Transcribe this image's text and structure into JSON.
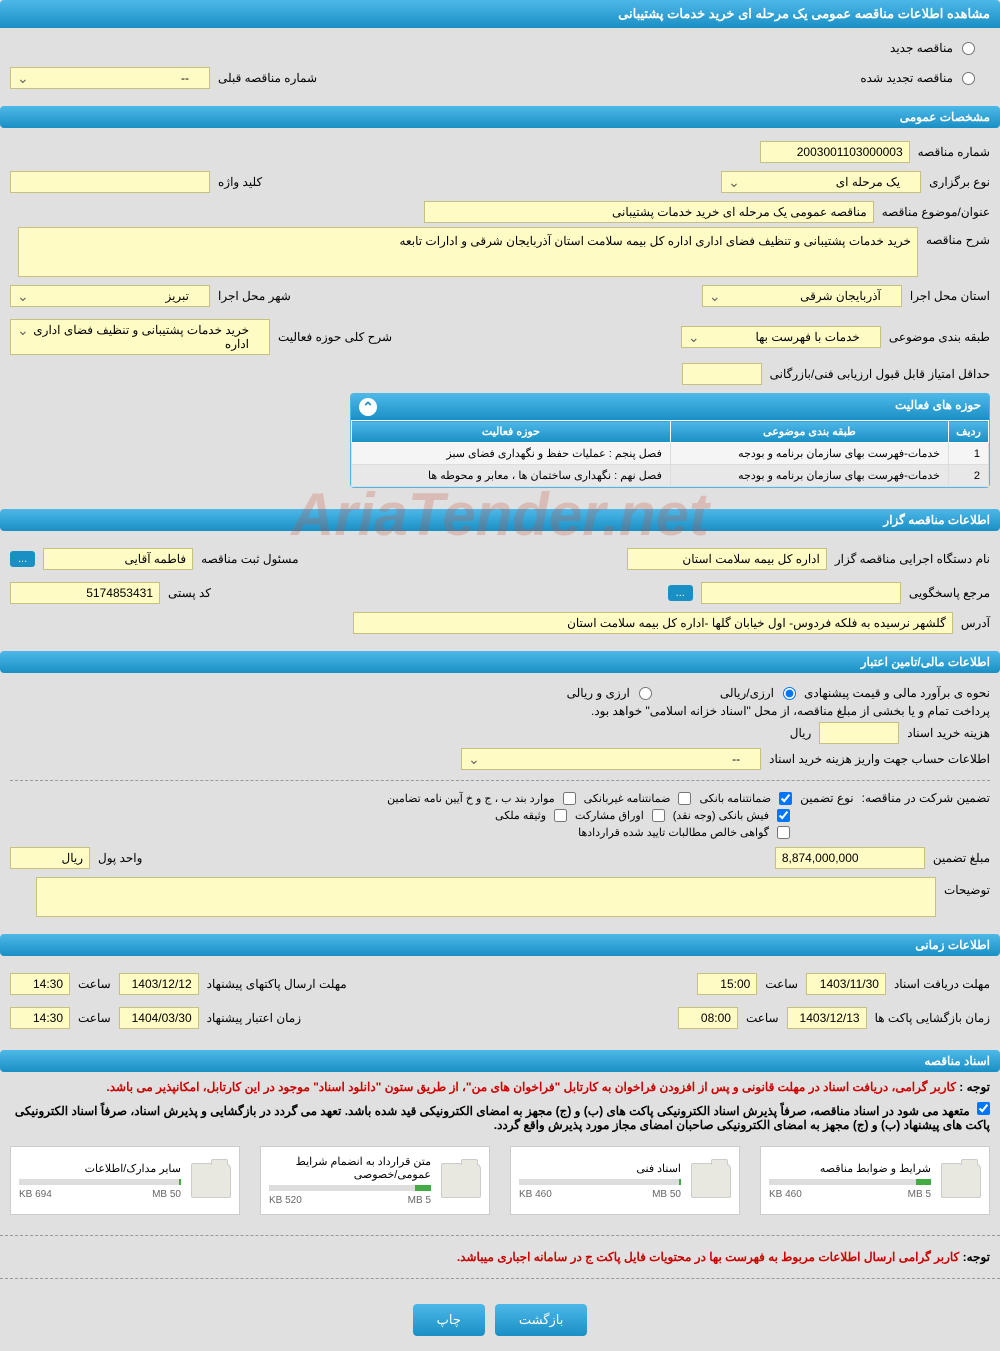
{
  "page_title": "مشاهده اطلاعات مناقصه عمومی یک مرحله ای خرید خدمات پشتیبانی",
  "tender_type": {
    "new_label": "مناقصه جدید",
    "renewed_label": "مناقصه تجدید شده",
    "prev_number_label": "شماره مناقصه قبلی",
    "prev_number_value": "--"
  },
  "sections": {
    "general": "مشخصات عمومی",
    "organizer": "اطلاعات مناقصه گزار",
    "financial": "اطلاعات مالی/تامین اعتبار",
    "timing": "اطلاعات زمانی",
    "documents": "اسناد مناقصه"
  },
  "general": {
    "tender_no_label": "شماره مناقصه",
    "tender_no": "2003001103000003",
    "type_label": "نوع برگزاری",
    "type_value": "یک مرحله ای",
    "keyword_label": "کلید واژه",
    "keyword_value": "",
    "title_label": "عنوان/موضوع مناقصه",
    "title_value": "مناقصه عمومی یک مرحله ای خرید خدمات پشتیبانی",
    "desc_label": "شرح مناقصه",
    "desc_value": "خرید خدمات پشتیبانی و تنظیف فضای اداری اداره کل بیمه سلامت استان آذربایجان شرقی و ادارات تابعه",
    "province_label": "استان محل اجرا",
    "province_value": "آذربایجان شرقی",
    "city_label": "شهر محل اجرا",
    "city_value": "تبریز",
    "subject_class_label": "طبقه بندی موضوعی",
    "subject_class_value": "خدمات با فهرست بها",
    "activity_desc_label": "شرح کلی حوزه فعالیت",
    "activity_desc_value": "خرید خدمات پشتیبانی و تنظیف فضای اداری اداره",
    "min_score_label": "حداقل امتیاز قابل قبول ارزیابی فنی/بازرگانی",
    "min_score_value": ""
  },
  "activity_panel": {
    "title": "حوزه های فعالیت",
    "col_row": "ردیف",
    "col_class": "طبقه بندی موضوعی",
    "col_field": "حوزه فعالیت",
    "rows": [
      {
        "n": "1",
        "class": "خدمات-فهرست بهای سازمان برنامه و بودجه",
        "field": "فصل پنجم : عملیات حفظ و نگهداری فضای سبز"
      },
      {
        "n": "2",
        "class": "خدمات-فهرست بهای سازمان برنامه و بودجه",
        "field": "فصل نهم : نگهداری ساختمان ها ، معابر و محوطه ها"
      }
    ]
  },
  "organizer": {
    "org_label": "نام دستگاه اجرایی مناقصه گزار",
    "org_value": "اداره کل بیمه سلامت استان",
    "reg_label": "مسئول ثبت مناقصه",
    "reg_value": "فاطمه آقایی",
    "more_btn": "...",
    "contact_label": "مرجع پاسخگویی",
    "contact_value": "",
    "contact_btn": "...",
    "postal_label": "کد پستی",
    "postal_value": "5174853431",
    "address_label": "آدرس",
    "address_value": "گلشهر نرسیده به فلکه فردوس- اول خیابان گلها -اداره کل بیمه سلامت استان"
  },
  "financial": {
    "estimate_label": "نحوه ی برآورد مالی و قیمت پیشنهادی",
    "opt_fx_rial": "ارزی/ریالی",
    "opt_fx_and_rial": "ارزی و ریالی",
    "source_note": "پرداخت تمام و یا بخشی از مبلغ مناقصه، از محل \"اسناد خزانه اسلامی\" خواهد بود.",
    "doc_cost_label": "هزینه خرید اسناد",
    "doc_cost_value": "",
    "rial_unit": "ریال",
    "account_label": "اطلاعات حساب جهت واریز هزینه خرید اسناد",
    "account_value": "--",
    "guarantee_label": "تضمین شرکت در مناقصه:",
    "guarantee_type_label": "نوع تضمین",
    "chk_bank": "ضمانتنامه بانکی",
    "chk_nonbank": "ضمانتنامه غیربانکی",
    "chk_regulation": "موارد بند ب ، ج و خ آیین نامه تضامین",
    "chk_cash": "فیش بانکی (وجه نقد)",
    "chk_bonds": "اوراق مشارکت",
    "chk_property": "وثیقه ملکی",
    "chk_contracts": "گواهی خالص مطالبات تایید شده قراردادها",
    "amount_label": "مبلغ تضمین",
    "amount_value": "8,874,000,000",
    "unit_label": "واحد پول",
    "unit_value": "ریال",
    "notes_label": "توضیحات",
    "notes_value": ""
  },
  "timing": {
    "receive_label": "مهلت دریافت اسناد",
    "receive_date": "1403/11/30",
    "receive_time_label": "ساعت",
    "receive_time": "15:00",
    "submit_label": "مهلت ارسال پاکتهای پیشنهاد",
    "submit_date": "1403/12/12",
    "submit_time_label": "ساعت",
    "submit_time": "14:30",
    "open_label": "زمان بازگشایی پاکت ها",
    "open_date": "1403/12/13",
    "open_time_label": "ساعت",
    "open_time": "08:00",
    "validity_label": "زمان اعتبار پیشنهاد",
    "validity_date": "1404/03/30",
    "validity_time_label": "ساعت",
    "validity_time": "14:30"
  },
  "documents": {
    "note1_prefix": "توجه : ",
    "note1": "کاربر گرامی، دریافت اسناد در مهلت قانونی و پس از افزودن فراخوان به کارتابل \"فراخوان های من\"، از طریق ستون \"دانلود اسناد\" موجود در این کارتابل، امکانپذیر می باشد.",
    "note2": "متعهد می شود در اسناد مناقصه، صرفاً پذیرش اسناد الکترونیکی پاکت های (ب) و (ج) مجهز به امضای الکترونیکی قید شده باشد. تعهد می گردد در بازگشایی و پذیرش اسناد، صرفاً اسناد الکترونیکی پاکت های پیشنهاد (ب) و (ج) مجهز به امضای الکترونیکی صاحبان امضای مجاز مورد پذیرش واقع گردد.",
    "items": [
      {
        "title": "شرایط و ضوابط مناقصه",
        "size": "460 KB",
        "max": "5 MB",
        "pct": 9
      },
      {
        "title": "اسناد فنی",
        "size": "460 KB",
        "max": "50 MB",
        "pct": 1
      },
      {
        "title": "متن قرارداد به انضمام شرایط عمومی/خصوصی",
        "size": "520 KB",
        "max": "5 MB",
        "pct": 10
      },
      {
        "title": "سایر مدارک/اطلاعات",
        "size": "694 KB",
        "max": "50 MB",
        "pct": 1
      }
    ],
    "footer_note_prefix": "توجه: ",
    "footer_note": "کاربر گرامی ارسال اطلاعات مربوط به فهرست بها در محتویات فایل پاکت ج در سامانه اجباری میباشد."
  },
  "buttons": {
    "back": "بازگشت",
    "print": "چاپ"
  },
  "watermark": "AriaTender.net"
}
